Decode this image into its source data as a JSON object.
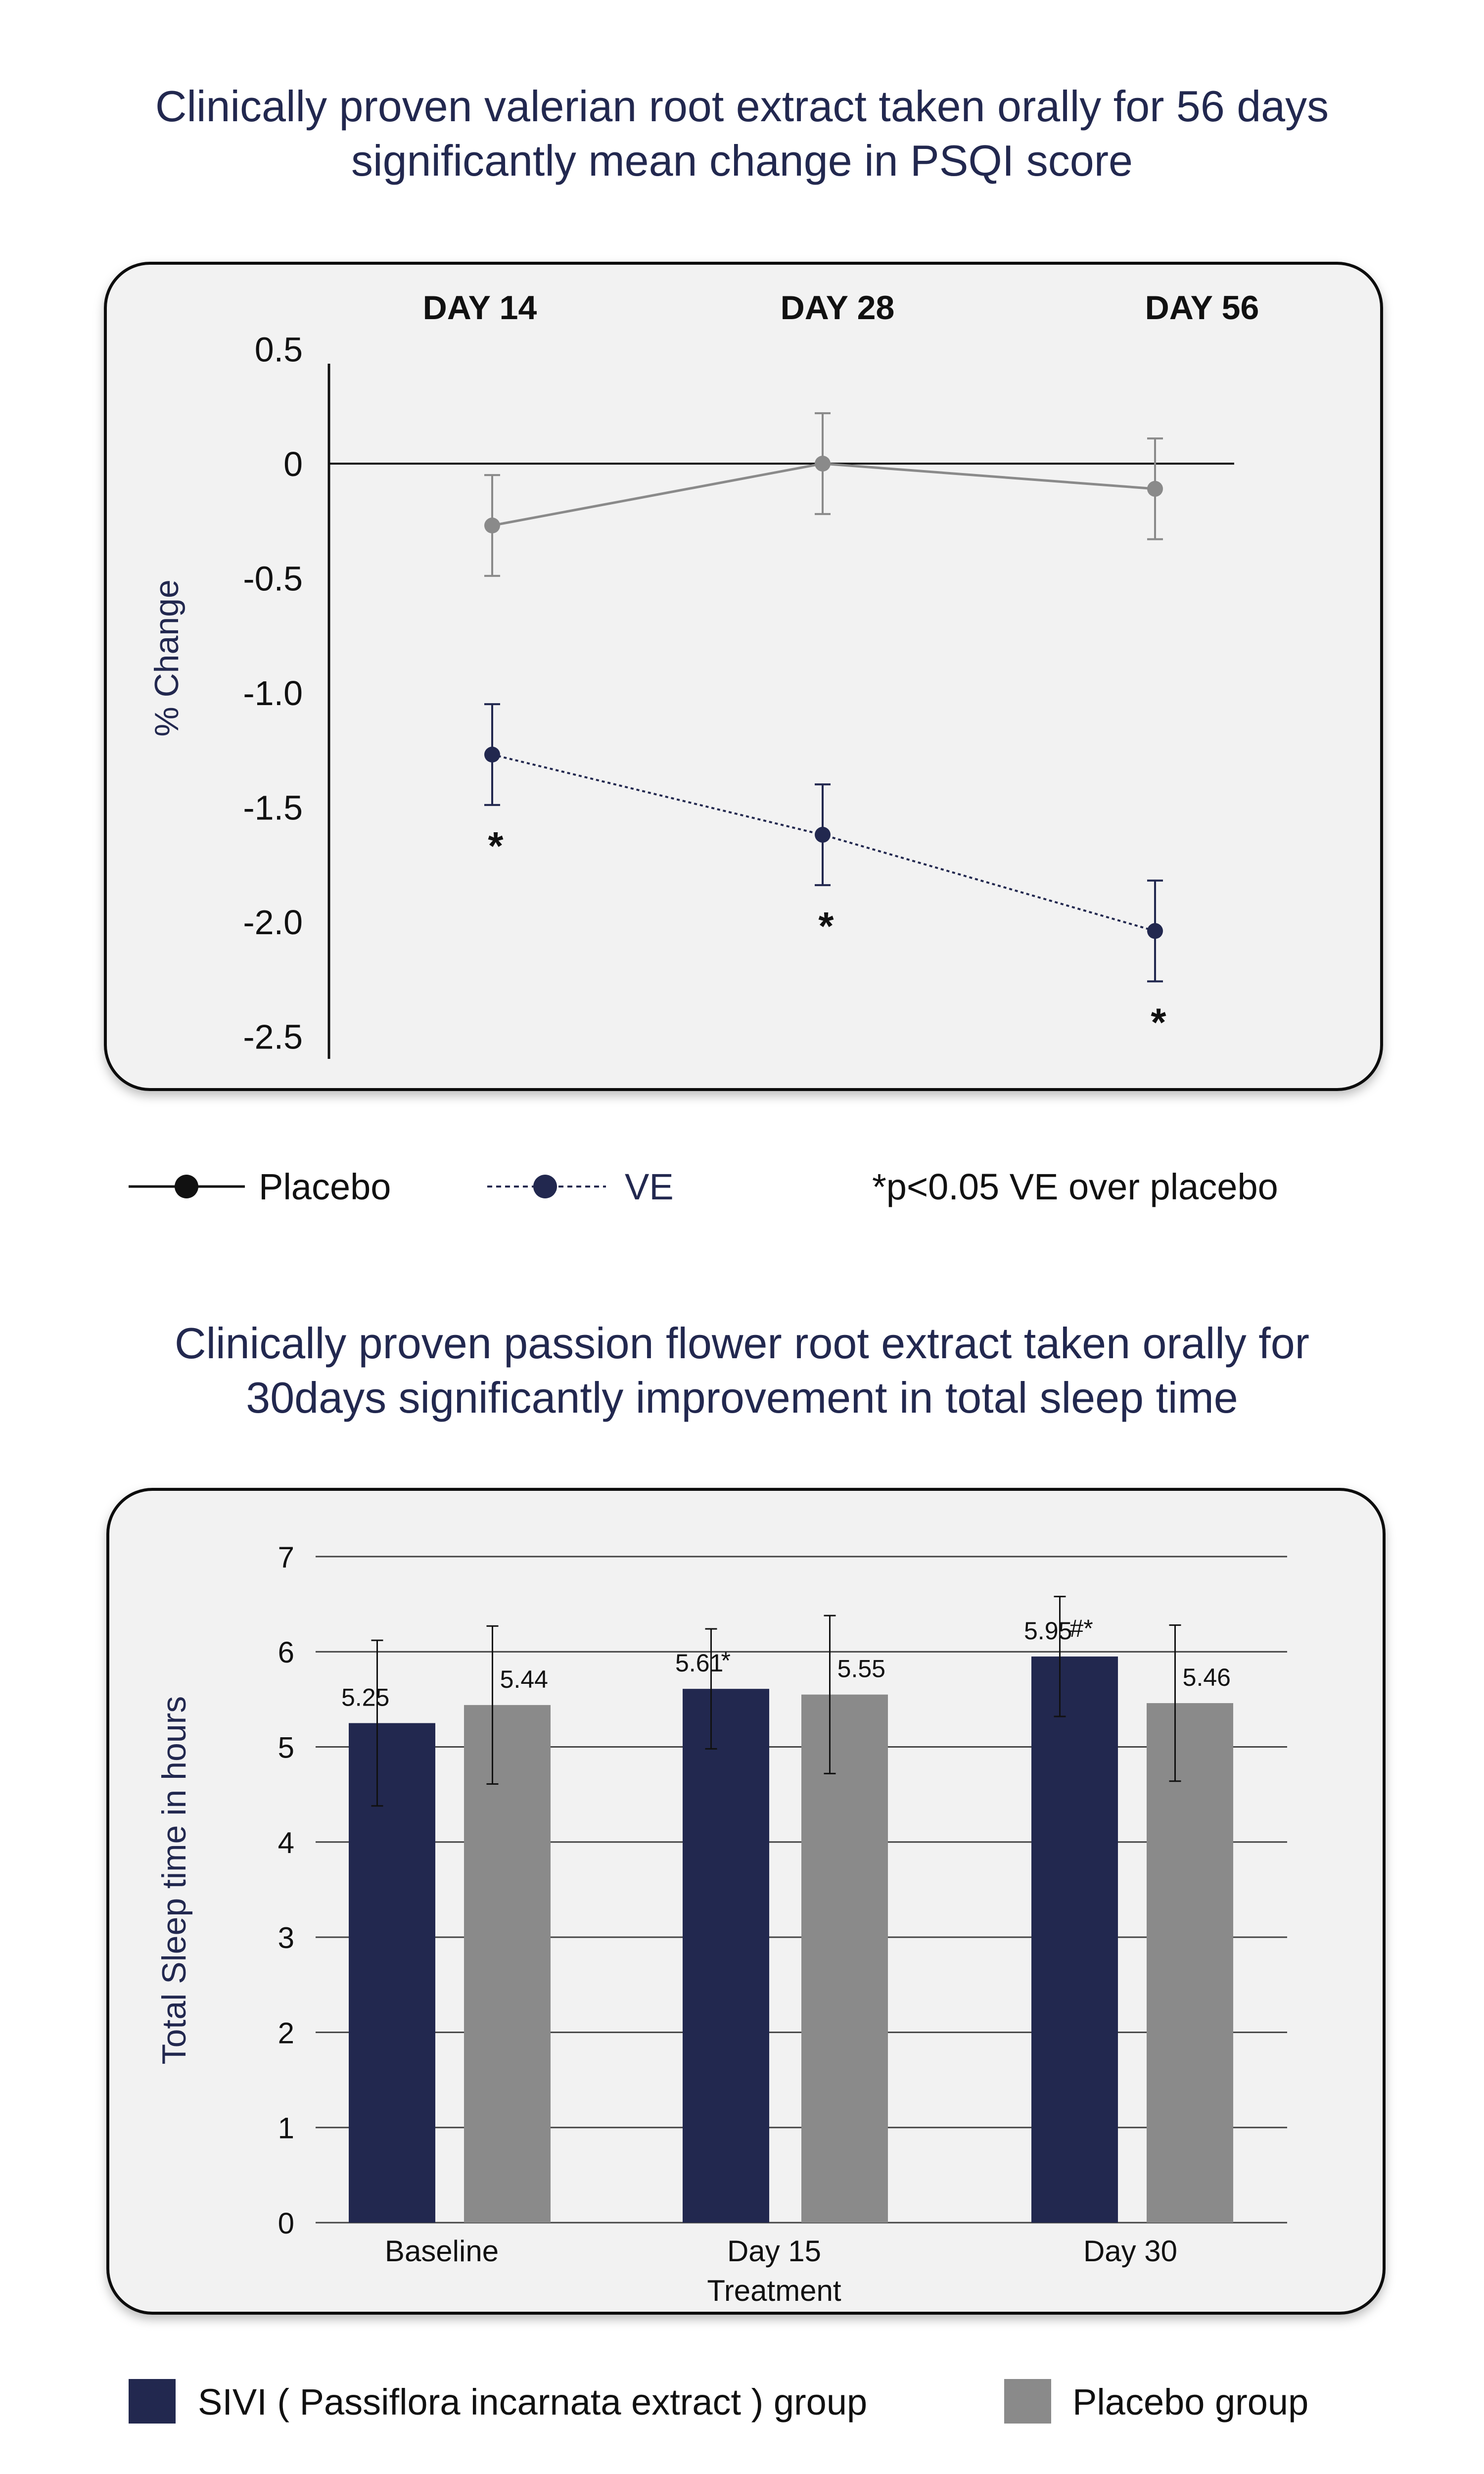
{
  "colors": {
    "navy": "#22284f",
    "gray": "#8a8a8a",
    "panel": "#f2f2f2",
    "black": "#111111",
    "title": "#22284f"
  },
  "chart1": {
    "title_line1": "Clinically proven valerian root extract taken orally for 56 days",
    "title_line2": "significantly mean change in PSQI score",
    "day_labels": [
      "DAY 14",
      "DAY 28",
      "DAY 56"
    ],
    "y_ticks": [
      "0.5",
      "0",
      "-0.5",
      "-1.0",
      "-1.5",
      "-2.0",
      "-2.5"
    ],
    "legend_placebo": "Placebo",
    "legend_ve": "VE",
    "footnote": "*p<0.05 VE over placebo",
    "sig_mark": "*"
  },
  "chart2": {
    "title_line1": "Clinically proven passion flower root extract taken orally for",
    "title_line2": "30days significantly improvement in total sleep time",
    "ylabel_bind": "Total Sleep time in hours",
    "xlabel_bind": "Treatment",
    "category_labels": [
      "Baseline",
      "Day 15",
      "Day 30"
    ],
    "annotations": [
      "*",
      "#*"
    ],
    "legend_sivi": "SIVI ( Passiflora incarnata extract ) group",
    "legend_placebo": "Placebo group"
  },
  "chart_data": [
    {
      "type": "line",
      "title": "Clinically proven valerian root extract taken orally for 56 days significantly mean change in PSQI score",
      "xlabel": "",
      "ylabel": "% Change",
      "categories": [
        "DAY 14",
        "DAY 28",
        "DAY 56"
      ],
      "ylim": [
        -2.5,
        0.5
      ],
      "yticks": [
        0.5,
        0,
        -0.5,
        -1.0,
        -1.5,
        -2.0,
        -2.5
      ],
      "grid": false,
      "series": [
        {
          "name": "Placebo",
          "values": [
            -0.27,
            0.0,
            -0.11
          ],
          "error": [
            0.22,
            0.22,
            0.22
          ],
          "color": "#8a8a8a",
          "style": "solid"
        },
        {
          "name": "VE",
          "values": [
            -1.27,
            -1.62,
            -2.04
          ],
          "error": [
            0.22,
            0.22,
            0.22
          ],
          "color": "#22284f",
          "style": "dotted"
        }
      ],
      "annotations": [
        "*",
        "*",
        "*"
      ],
      "footnote": "*p<0.05 VE over placebo",
      "legend": "bottom"
    },
    {
      "type": "bar",
      "title": "Clinically proven passion flower root extract taken orally for 30days significantly improvement in total sleep time",
      "xlabel": "Treatment",
      "ylabel": "Total Sleep time in hours",
      "categories": [
        "Baseline",
        "Day 15",
        "Day 30"
      ],
      "ylim": [
        0,
        7
      ],
      "yticks": [
        0,
        1,
        2,
        3,
        4,
        5,
        6,
        7
      ],
      "grid": true,
      "series": [
        {
          "name": "SIVI ( Passiflora incarnata extract ) group",
          "values": [
            5.25,
            5.61,
            5.95
          ],
          "labels": [
            "5.25",
            "5.61",
            "5.95"
          ],
          "error": [
            0.87,
            0.63,
            0.63
          ],
          "color": "#22284f"
        },
        {
          "name": "Placebo group",
          "values": [
            5.44,
            5.55,
            5.46
          ],
          "labels": [
            "5.44",
            "5.55",
            "5.46"
          ],
          "error": [
            0.83,
            0.83,
            0.82
          ],
          "color": "#8a8a8a"
        }
      ],
      "annotations": [
        "",
        "*",
        "#*"
      ],
      "legend": "bottom"
    }
  ]
}
